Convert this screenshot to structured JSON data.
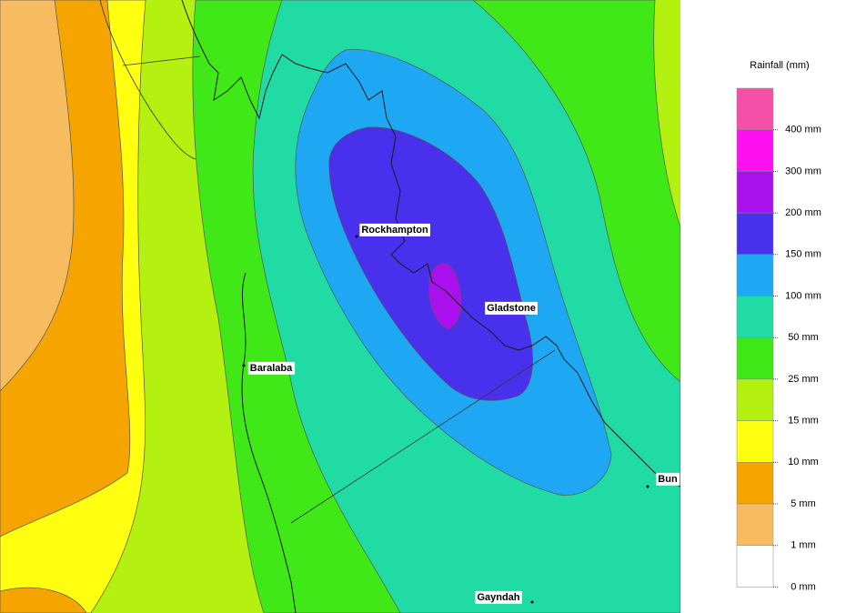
{
  "map": {
    "towns": [
      {
        "name": "Rockhampton"
      },
      {
        "name": "Gladstone"
      },
      {
        "name": "Baralaba"
      },
      {
        "name": "Gayndah"
      },
      {
        "name": "Bun"
      }
    ]
  },
  "legend": {
    "title": "Rainfall (mm)",
    "labels": [
      "400 mm",
      "300 mm",
      "200 mm",
      "150 mm",
      "100 mm",
      "50 mm",
      "25 mm",
      "15 mm",
      "10 mm",
      "5 mm",
      "1 mm",
      "0 mm"
    ],
    "colors": [
      "#f550a8",
      "#ff10f0",
      "#aa10ee",
      "#4830ec",
      "#1ea8f4",
      "#20dca4",
      "#40e818",
      "#b4f010",
      "#ffff10",
      "#f5a400",
      "#f8bc60",
      "#ffffff"
    ]
  }
}
